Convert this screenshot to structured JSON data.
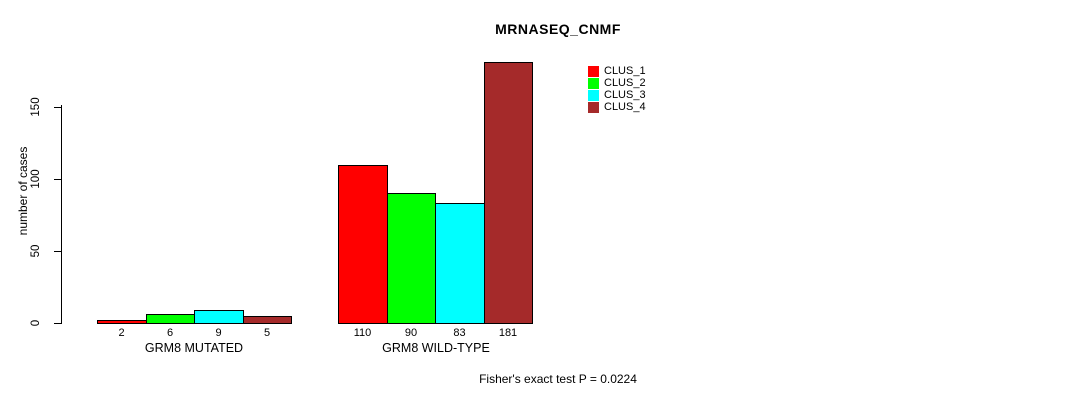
{
  "chart_data": {
    "type": "bar",
    "title": "MRNASEQ_CNMF",
    "xlabel": "",
    "ylabel": "number of cases",
    "categories": [
      "GRM8 MUTATED",
      "GRM8 WILD-TYPE"
    ],
    "series": [
      {
        "name": "CLUS_1",
        "color": "#FF0000",
        "values": [
          2,
          110
        ]
      },
      {
        "name": "CLUS_2",
        "color": "#00FF00",
        "values": [
          6,
          90
        ]
      },
      {
        "name": "CLUS_3",
        "color": "#00FFFF",
        "values": [
          9,
          83
        ]
      },
      {
        "name": "CLUS_4",
        "color": "#A52A2A",
        "values": [
          5,
          181
        ]
      }
    ],
    "y_ticks": [
      0,
      50,
      100,
      150
    ],
    "ylim": [
      0,
      181
    ],
    "grid": false,
    "legend_position": "top-right"
  },
  "footer": {
    "caption": "Fisher's exact test P = 0.0224"
  }
}
